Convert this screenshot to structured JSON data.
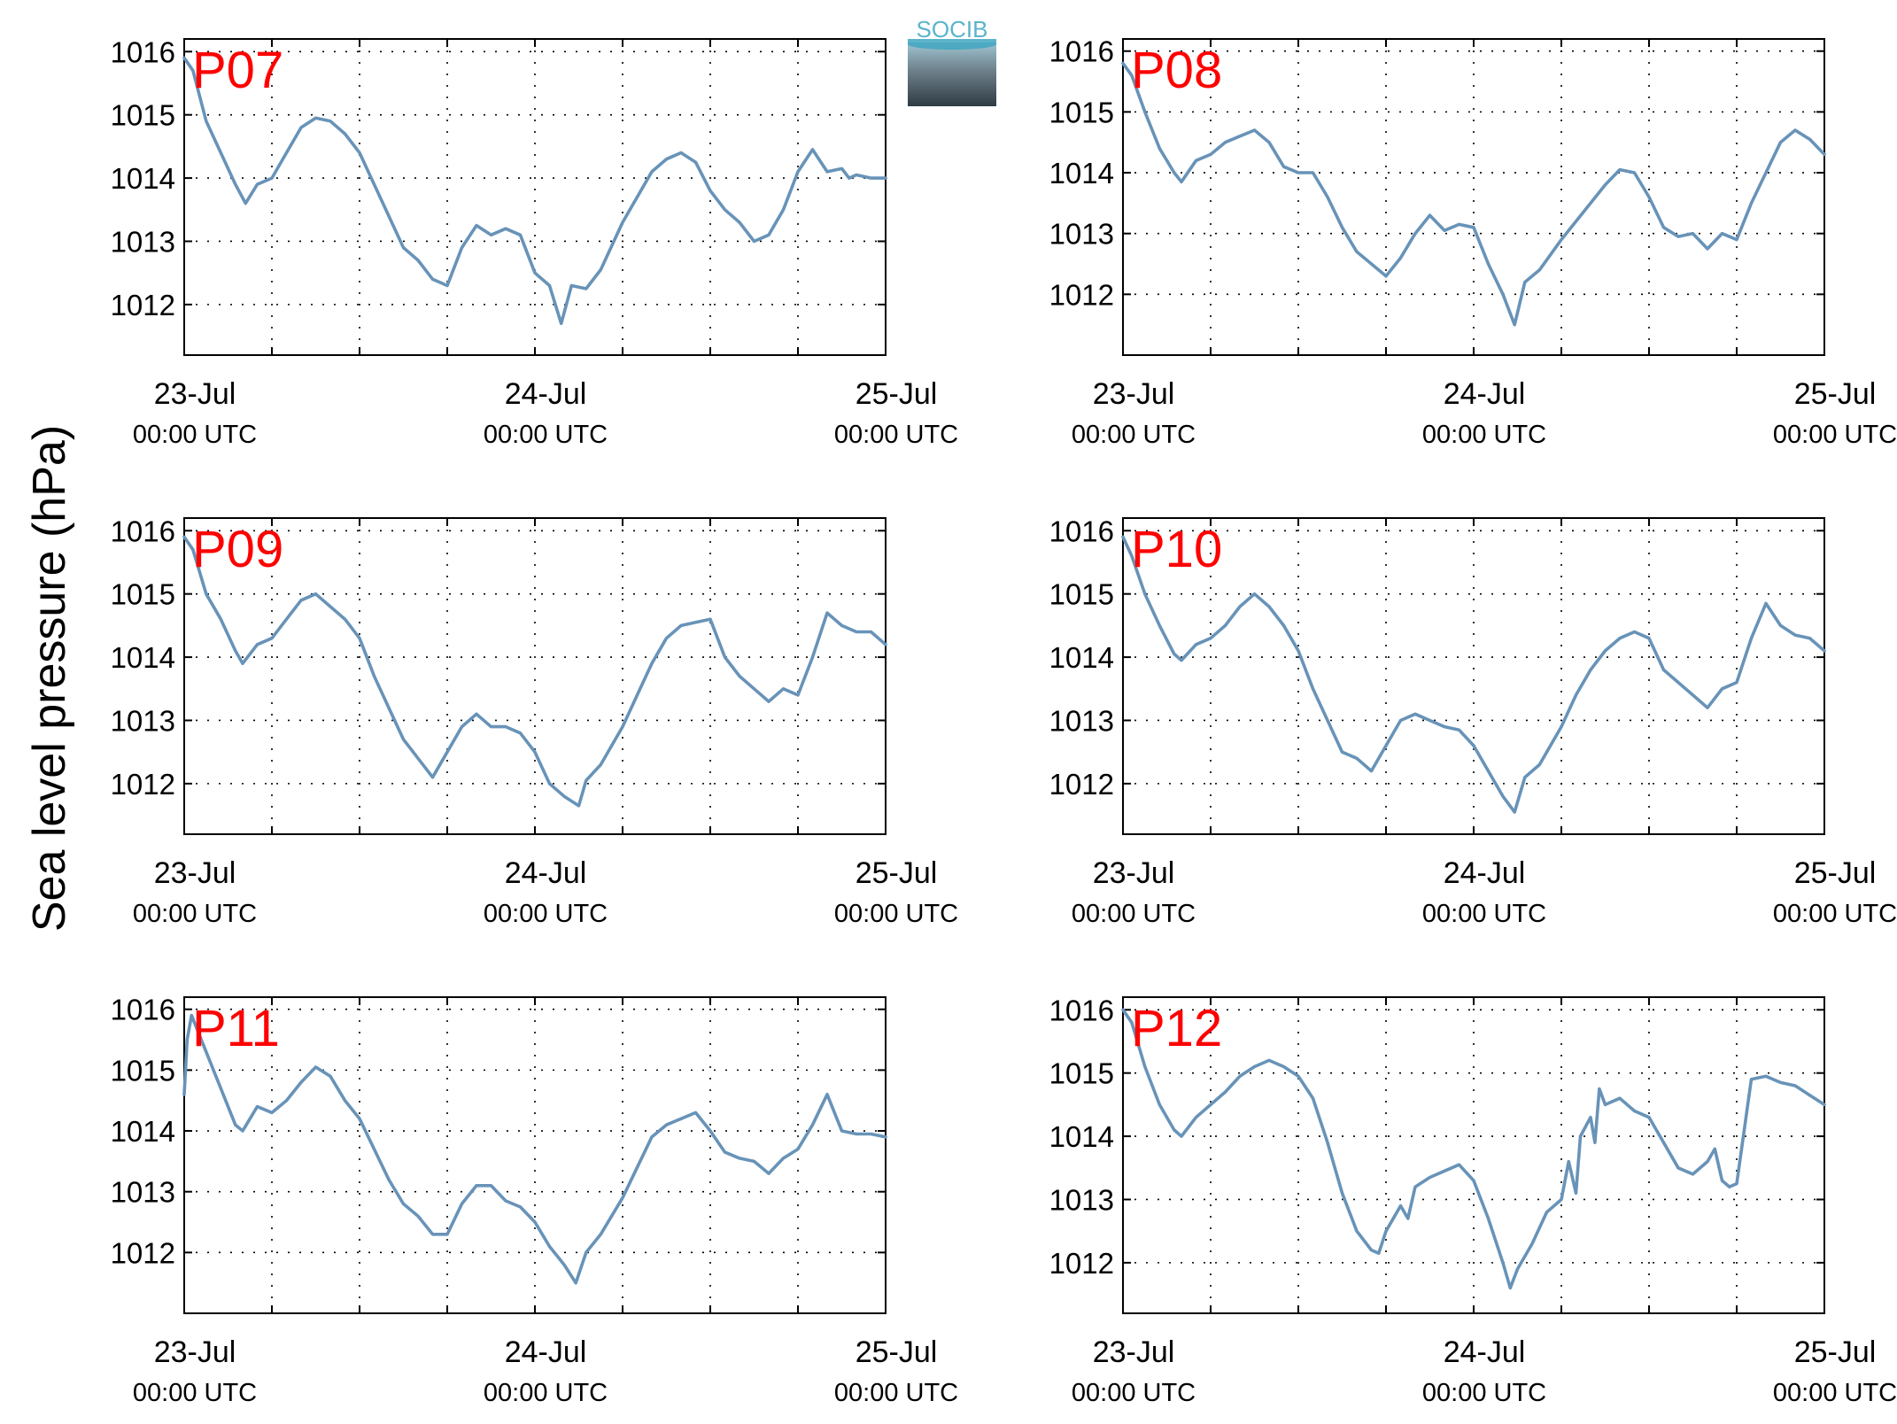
{
  "figure": {
    "ylabel": "Sea level pressure (hPa)",
    "logo_text": "SOCIB",
    "line_color": "#6893b8",
    "label_color": "#ff0000"
  },
  "chart_data": [
    {
      "type": "line",
      "panel_label": "P07",
      "xlim": [
        0,
        48
      ],
      "ylim": [
        1011.2,
        1016.2
      ],
      "yticks": [
        1012,
        1013,
        1014,
        1015,
        1016
      ],
      "xticks": [
        {
          "h": 0,
          "line1": "23-Jul",
          "line2": "00:00 UTC"
        },
        {
          "h": 24,
          "line1": "24-Jul",
          "line2": "00:00 UTC"
        },
        {
          "h": 48,
          "line1": "25-Jul",
          "line2": "00:00 UTC"
        }
      ],
      "grid_hours": [
        6,
        12,
        18,
        24,
        30,
        36,
        42
      ],
      "grid": true,
      "x": [
        0,
        0.6,
        1.5,
        2.5,
        3.5,
        4.2,
        5,
        6,
        7,
        8,
        9,
        10,
        11,
        12,
        13,
        14,
        15,
        16,
        17,
        17.5,
        18,
        19,
        20,
        21,
        22,
        23,
        24,
        25,
        25.8,
        26.5,
        27.5,
        28.5,
        30,
        31,
        32,
        33,
        34,
        35,
        36,
        37,
        38,
        39,
        40,
        41,
        42,
        43,
        44,
        45,
        45.5,
        46,
        47,
        48
      ],
      "y": [
        1015.9,
        1015.7,
        1014.9,
        1014.4,
        1013.9,
        1013.6,
        1013.9,
        1014.0,
        1014.4,
        1014.8,
        1014.95,
        1014.9,
        1014.7,
        1014.4,
        1013.9,
        1013.4,
        1012.9,
        1012.7,
        1012.4,
        1012.35,
        1012.3,
        1012.9,
        1013.25,
        1013.1,
        1013.2,
        1013.1,
        1012.5,
        1012.3,
        1011.7,
        1012.3,
        1012.25,
        1012.55,
        1013.3,
        1013.7,
        1014.1,
        1014.3,
        1014.4,
        1014.25,
        1013.8,
        1013.5,
        1013.3,
        1013.0,
        1013.1,
        1013.5,
        1014.1,
        1014.45,
        1014.1,
        1014.15,
        1014.0,
        1014.05,
        1014.0,
        1014.0
      ]
    },
    {
      "type": "line",
      "panel_label": "P08",
      "xlim": [
        0,
        48
      ],
      "ylim": [
        1011.0,
        1016.2
      ],
      "yticks": [
        1012,
        1013,
        1014,
        1015,
        1016
      ],
      "xticks": [
        {
          "h": 0,
          "line1": "23-Jul",
          "line2": "00:00 UTC"
        },
        {
          "h": 24,
          "line1": "24-Jul",
          "line2": "00:00 UTC"
        },
        {
          "h": 48,
          "line1": "25-Jul",
          "line2": "00:00 UTC"
        }
      ],
      "grid_hours": [
        6,
        12,
        18,
        24,
        30,
        36,
        42
      ],
      "grid": true,
      "x": [
        0,
        0.6,
        1.5,
        2.5,
        3.5,
        4,
        5,
        6,
        7,
        8,
        9,
        10,
        11,
        12,
        13,
        14,
        15,
        16,
        17,
        18,
        19,
        20,
        21,
        22,
        23,
        24,
        25,
        26,
        26.8,
        27.5,
        28.5,
        30,
        31,
        32,
        33,
        34,
        35,
        36,
        37,
        38,
        39,
        40,
        41,
        42,
        43,
        44,
        45,
        46,
        47,
        48
      ],
      "y": [
        1015.8,
        1015.6,
        1015.0,
        1014.4,
        1014.0,
        1013.85,
        1014.2,
        1014.3,
        1014.5,
        1014.6,
        1014.7,
        1014.5,
        1014.1,
        1014.0,
        1014.0,
        1013.6,
        1013.1,
        1012.7,
        1012.5,
        1012.3,
        1012.6,
        1013.0,
        1013.3,
        1013.05,
        1013.15,
        1013.1,
        1012.5,
        1012.0,
        1011.5,
        1012.2,
        1012.4,
        1012.9,
        1013.2,
        1013.5,
        1013.8,
        1014.05,
        1014.0,
        1013.6,
        1013.1,
        1012.95,
        1013.0,
        1012.75,
        1013.0,
        1012.9,
        1013.5,
        1014.0,
        1014.5,
        1014.7,
        1014.55,
        1014.3
      ]
    },
    {
      "type": "line",
      "panel_label": "P09",
      "xlim": [
        0,
        48
      ],
      "ylim": [
        1011.2,
        1016.2
      ],
      "yticks": [
        1012,
        1013,
        1014,
        1015,
        1016
      ],
      "xticks": [
        {
          "h": 0,
          "line1": "23-Jul",
          "line2": "00:00 UTC"
        },
        {
          "h": 24,
          "line1": "24-Jul",
          "line2": "00:00 UTC"
        },
        {
          "h": 48,
          "line1": "25-Jul",
          "line2": "00:00 UTC"
        }
      ],
      "grid_hours": [
        6,
        12,
        18,
        24,
        30,
        36,
        42
      ],
      "grid": true,
      "x": [
        0,
        0.6,
        1.5,
        2.5,
        3.5,
        4,
        5,
        6,
        7,
        8,
        9,
        10,
        11,
        12,
        13,
        14,
        15,
        16,
        17,
        18,
        19,
        20,
        21,
        22,
        23,
        24,
        25,
        26,
        27,
        27.5,
        28.5,
        30,
        31,
        32,
        33,
        34,
        35,
        36,
        37,
        38,
        39,
        40,
        41,
        42,
        43,
        44,
        45,
        46,
        47,
        48
      ],
      "y": [
        1015.9,
        1015.7,
        1015.0,
        1014.6,
        1014.1,
        1013.9,
        1014.2,
        1014.3,
        1014.6,
        1014.9,
        1015.0,
        1014.8,
        1014.6,
        1014.3,
        1013.7,
        1013.2,
        1012.7,
        1012.4,
        1012.1,
        1012.5,
        1012.9,
        1013.1,
        1012.9,
        1012.9,
        1012.8,
        1012.5,
        1012.0,
        1011.8,
        1011.65,
        1012.05,
        1012.3,
        1012.9,
        1013.4,
        1013.9,
        1014.3,
        1014.5,
        1014.55,
        1014.6,
        1014.0,
        1013.7,
        1013.5,
        1013.3,
        1013.5,
        1013.4,
        1014.0,
        1014.7,
        1014.5,
        1014.4,
        1014.4,
        1014.2
      ]
    },
    {
      "type": "line",
      "panel_label": "P10",
      "xlim": [
        0,
        48
      ],
      "ylim": [
        1011.2,
        1016.2
      ],
      "yticks": [
        1012,
        1013,
        1014,
        1015,
        1016
      ],
      "xticks": [
        {
          "h": 0,
          "line1": "23-Jul",
          "line2": "00:00 UTC"
        },
        {
          "h": 24,
          "line1": "24-Jul",
          "line2": "00:00 UTC"
        },
        {
          "h": 48,
          "line1": "25-Jul",
          "line2": "00:00 UTC"
        }
      ],
      "grid_hours": [
        6,
        12,
        18,
        24,
        30,
        36,
        42
      ],
      "grid": true,
      "x": [
        0,
        0.6,
        1.5,
        2.5,
        3.5,
        4,
        5,
        6,
        7,
        8,
        9,
        10,
        11,
        12,
        13,
        14,
        15,
        16,
        17,
        18,
        19,
        20,
        21,
        22,
        23,
        24,
        25,
        26,
        26.8,
        27.5,
        28.5,
        30,
        31,
        32,
        33,
        34,
        35,
        36,
        37,
        38,
        39,
        40,
        41,
        42,
        43,
        44,
        45,
        46,
        47,
        48
      ],
      "y": [
        1015.9,
        1015.6,
        1015.0,
        1014.5,
        1014.05,
        1013.95,
        1014.2,
        1014.3,
        1014.5,
        1014.8,
        1015.0,
        1014.8,
        1014.5,
        1014.1,
        1013.5,
        1013.0,
        1012.5,
        1012.4,
        1012.2,
        1012.6,
        1013.0,
        1013.1,
        1013.0,
        1012.9,
        1012.85,
        1012.6,
        1012.2,
        1011.8,
        1011.55,
        1012.1,
        1012.3,
        1012.9,
        1013.4,
        1013.8,
        1014.1,
        1014.3,
        1014.4,
        1014.3,
        1013.8,
        1013.6,
        1013.4,
        1013.2,
        1013.5,
        1013.6,
        1014.3,
        1014.85,
        1014.5,
        1014.35,
        1014.3,
        1014.1
      ]
    },
    {
      "type": "line",
      "panel_label": "P11",
      "xlim": [
        0,
        48
      ],
      "ylim": [
        1011.0,
        1016.2
      ],
      "yticks": [
        1012,
        1013,
        1014,
        1015,
        1016
      ],
      "xticks": [
        {
          "h": 0,
          "line1": "23-Jul",
          "line2": "00:00 UTC"
        },
        {
          "h": 24,
          "line1": "24-Jul",
          "line2": "00:00 UTC"
        },
        {
          "h": 48,
          "line1": "25-Jul",
          "line2": "00:00 UTC"
        }
      ],
      "grid_hours": [
        6,
        12,
        18,
        24,
        30,
        36,
        42
      ],
      "grid": true,
      "x": [
        0,
        0.2,
        0.5,
        1,
        1.5,
        2.5,
        3.5,
        4,
        5,
        6,
        7,
        8,
        9,
        10,
        11,
        12,
        13,
        14,
        15,
        16,
        17,
        18,
        19,
        20,
        21,
        22,
        23,
        24,
        25,
        26,
        26.8,
        27.5,
        28.5,
        30,
        31,
        32,
        33,
        34,
        35,
        36,
        37,
        38,
        39,
        40,
        41,
        42,
        43,
        44,
        45,
        46,
        47,
        48
      ],
      "y": [
        1014.6,
        1015.5,
        1015.9,
        1015.6,
        1015.3,
        1014.7,
        1014.1,
        1014.0,
        1014.4,
        1014.3,
        1014.5,
        1014.8,
        1015.05,
        1014.9,
        1014.5,
        1014.2,
        1013.7,
        1013.2,
        1012.8,
        1012.6,
        1012.3,
        1012.3,
        1012.8,
        1013.1,
        1013.1,
        1012.85,
        1012.75,
        1012.5,
        1012.1,
        1011.8,
        1011.5,
        1012.0,
        1012.3,
        1012.9,
        1013.4,
        1013.9,
        1014.1,
        1014.2,
        1014.3,
        1014.0,
        1013.65,
        1013.55,
        1013.5,
        1013.3,
        1013.55,
        1013.7,
        1014.1,
        1014.6,
        1014.0,
        1013.95,
        1013.95,
        1013.9
      ]
    },
    {
      "type": "line",
      "panel_label": "P12",
      "xlim": [
        0,
        48
      ],
      "ylim": [
        1011.2,
        1016.2
      ],
      "yticks": [
        1012,
        1013,
        1014,
        1015,
        1016
      ],
      "xticks": [
        {
          "h": 0,
          "line1": "23-Jul",
          "line2": "00:00 UTC"
        },
        {
          "h": 24,
          "line1": "24-Jul",
          "line2": "00:00 UTC"
        },
        {
          "h": 48,
          "line1": "25-Jul",
          "line2": "00:00 UTC"
        }
      ],
      "grid_hours": [
        6,
        12,
        18,
        24,
        30,
        36,
        42
      ],
      "grid": true,
      "x": [
        0,
        0.6,
        1.5,
        2.5,
        3.5,
        4,
        5,
        6,
        7,
        8,
        9,
        10,
        11,
        12,
        13,
        14,
        15,
        16,
        17,
        17.5,
        18,
        19,
        19.5,
        20,
        21,
        22,
        23,
        24,
        25,
        26,
        26.5,
        27,
        28,
        29,
        30,
        30.5,
        31,
        31.3,
        32,
        32.3,
        32.6,
        33,
        34,
        35,
        36,
        37,
        38,
        39,
        40,
        40.5,
        41,
        41.5,
        42,
        43,
        44,
        45,
        46,
        47,
        48
      ],
      "y": [
        1016.0,
        1015.8,
        1015.1,
        1014.5,
        1014.1,
        1014.0,
        1014.3,
        1014.5,
        1014.7,
        1014.95,
        1015.1,
        1015.2,
        1015.1,
        1014.95,
        1014.6,
        1013.9,
        1013.1,
        1012.5,
        1012.2,
        1012.15,
        1012.5,
        1012.9,
        1012.7,
        1013.2,
        1013.35,
        1013.45,
        1013.55,
        1013.3,
        1012.7,
        1012.0,
        1011.6,
        1011.9,
        1012.3,
        1012.8,
        1013.0,
        1013.6,
        1013.1,
        1014.0,
        1014.3,
        1013.9,
        1014.75,
        1014.5,
        1014.6,
        1014.4,
        1014.3,
        1013.9,
        1013.5,
        1013.4,
        1013.6,
        1013.8,
        1013.3,
        1013.2,
        1013.25,
        1014.9,
        1014.95,
        1014.85,
        1014.8,
        1014.65,
        1014.5
      ]
    }
  ]
}
